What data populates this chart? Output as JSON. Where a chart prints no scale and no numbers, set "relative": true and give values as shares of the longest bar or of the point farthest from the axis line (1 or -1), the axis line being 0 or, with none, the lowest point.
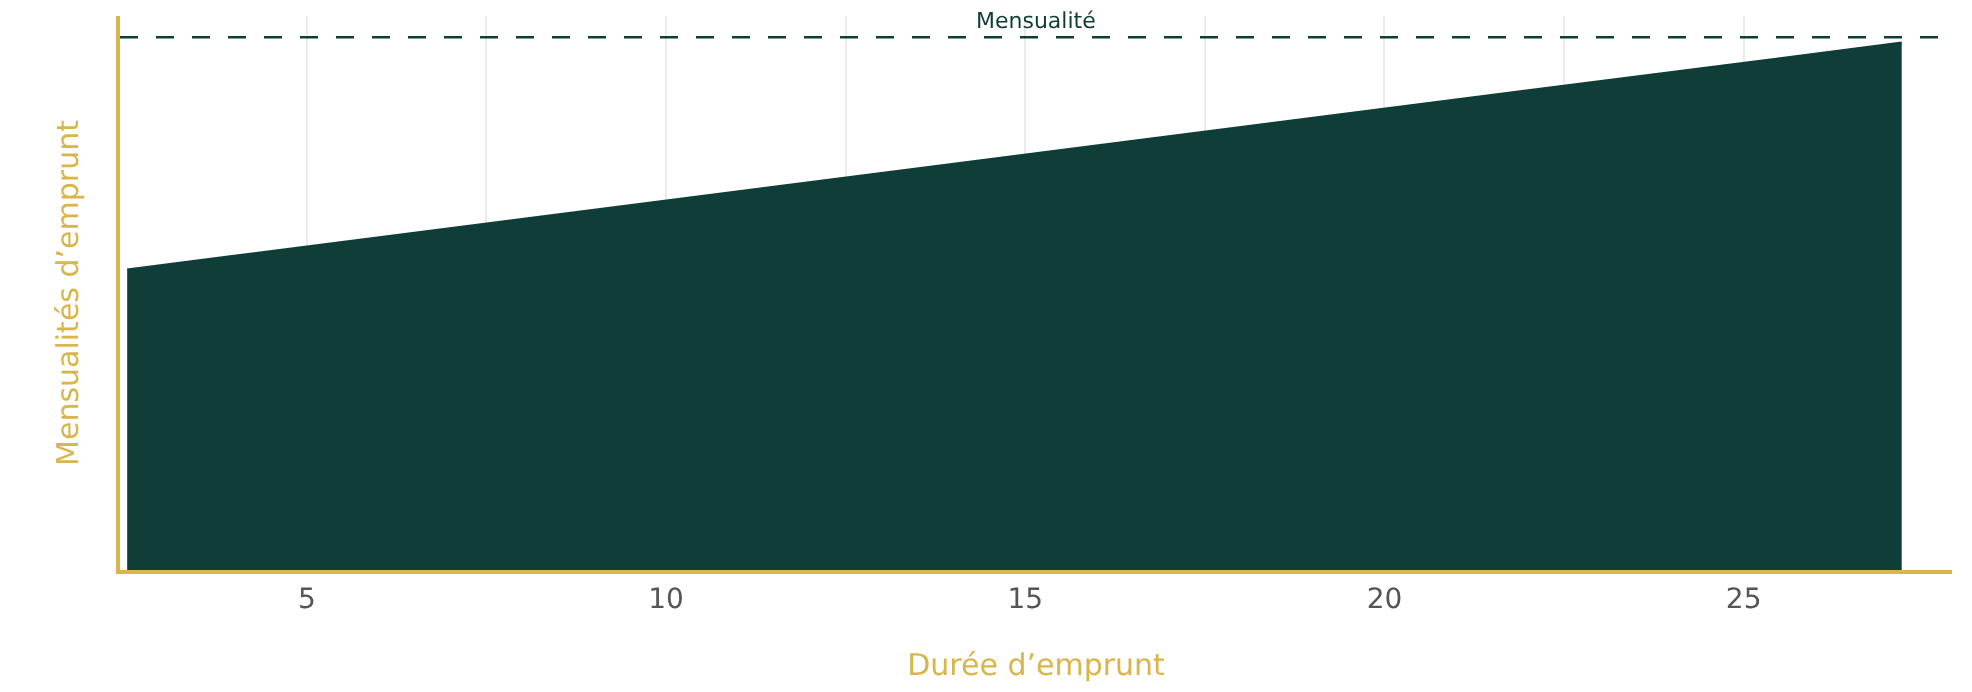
{
  "chart_data": {
    "type": "area",
    "relative": true,
    "xlabel": "Durée d’emprunt",
    "ylabel": "Mensualités d’emprunt",
    "x": [
      2.5,
      27.2
    ],
    "series": [
      {
        "color": "#0f3d37",
        "values": [
          0.57,
          1
        ]
      }
    ],
    "xlim": [
      2.4,
      27.9
    ],
    "xticks": [
      5,
      {
        "value": 7.5,
        "label": null
      },
      10,
      {
        "value": 12.5,
        "label": null
      },
      15,
      {
        "value": 17.5,
        "label": null
      },
      20,
      {
        "value": 22.5,
        "label": null
      },
      25
    ],
    "grid": "x",
    "ref_lines": [
      {
        "axis": "y",
        "value": 1.01,
        "label": "Mensualité",
        "color": "#0f3d37",
        "line_style": "dashed"
      }
    ]
  }
}
